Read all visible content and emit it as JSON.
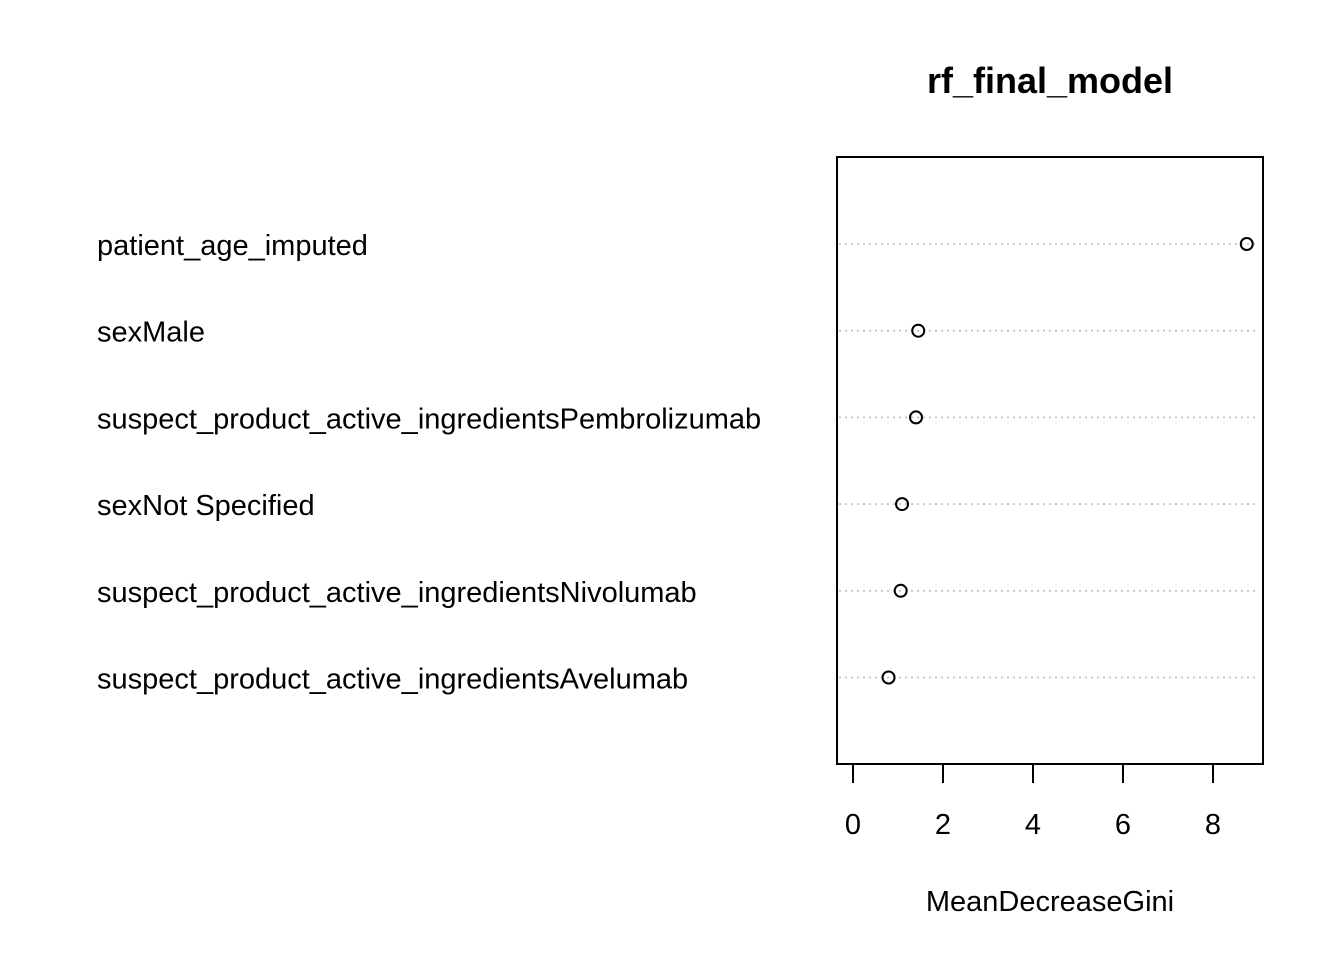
{
  "chart_data": {
    "type": "scatter",
    "title": "rf_final_model",
    "xlabel": "MeanDecreaseGini",
    "ylabel": "",
    "xlim": [
      -0.35,
      9.1
    ],
    "xticks": [
      0,
      2,
      4,
      6,
      8
    ],
    "xtick_labels": [
      "0",
      "2",
      "4",
      "6",
      "8"
    ],
    "grid": "dotted horizontal guide lines per variable",
    "colors": {
      "points": "#000000",
      "guides": "#bebebe",
      "frame": "#000000"
    },
    "variables": [
      {
        "name": "patient_age_imputed",
        "value": 8.75
      },
      {
        "name": "sexMale",
        "value": 1.45
      },
      {
        "name": "suspect_product_active_ingredientsPembrolizumab",
        "value": 1.4
      },
      {
        "name": "sexNot Specified",
        "value": 1.09
      },
      {
        "name": "suspect_product_active_ingredientsNivolumab",
        "value": 1.06
      },
      {
        "name": "suspect_product_active_ingredientsAvelumab",
        "value": 0.79
      }
    ]
  }
}
